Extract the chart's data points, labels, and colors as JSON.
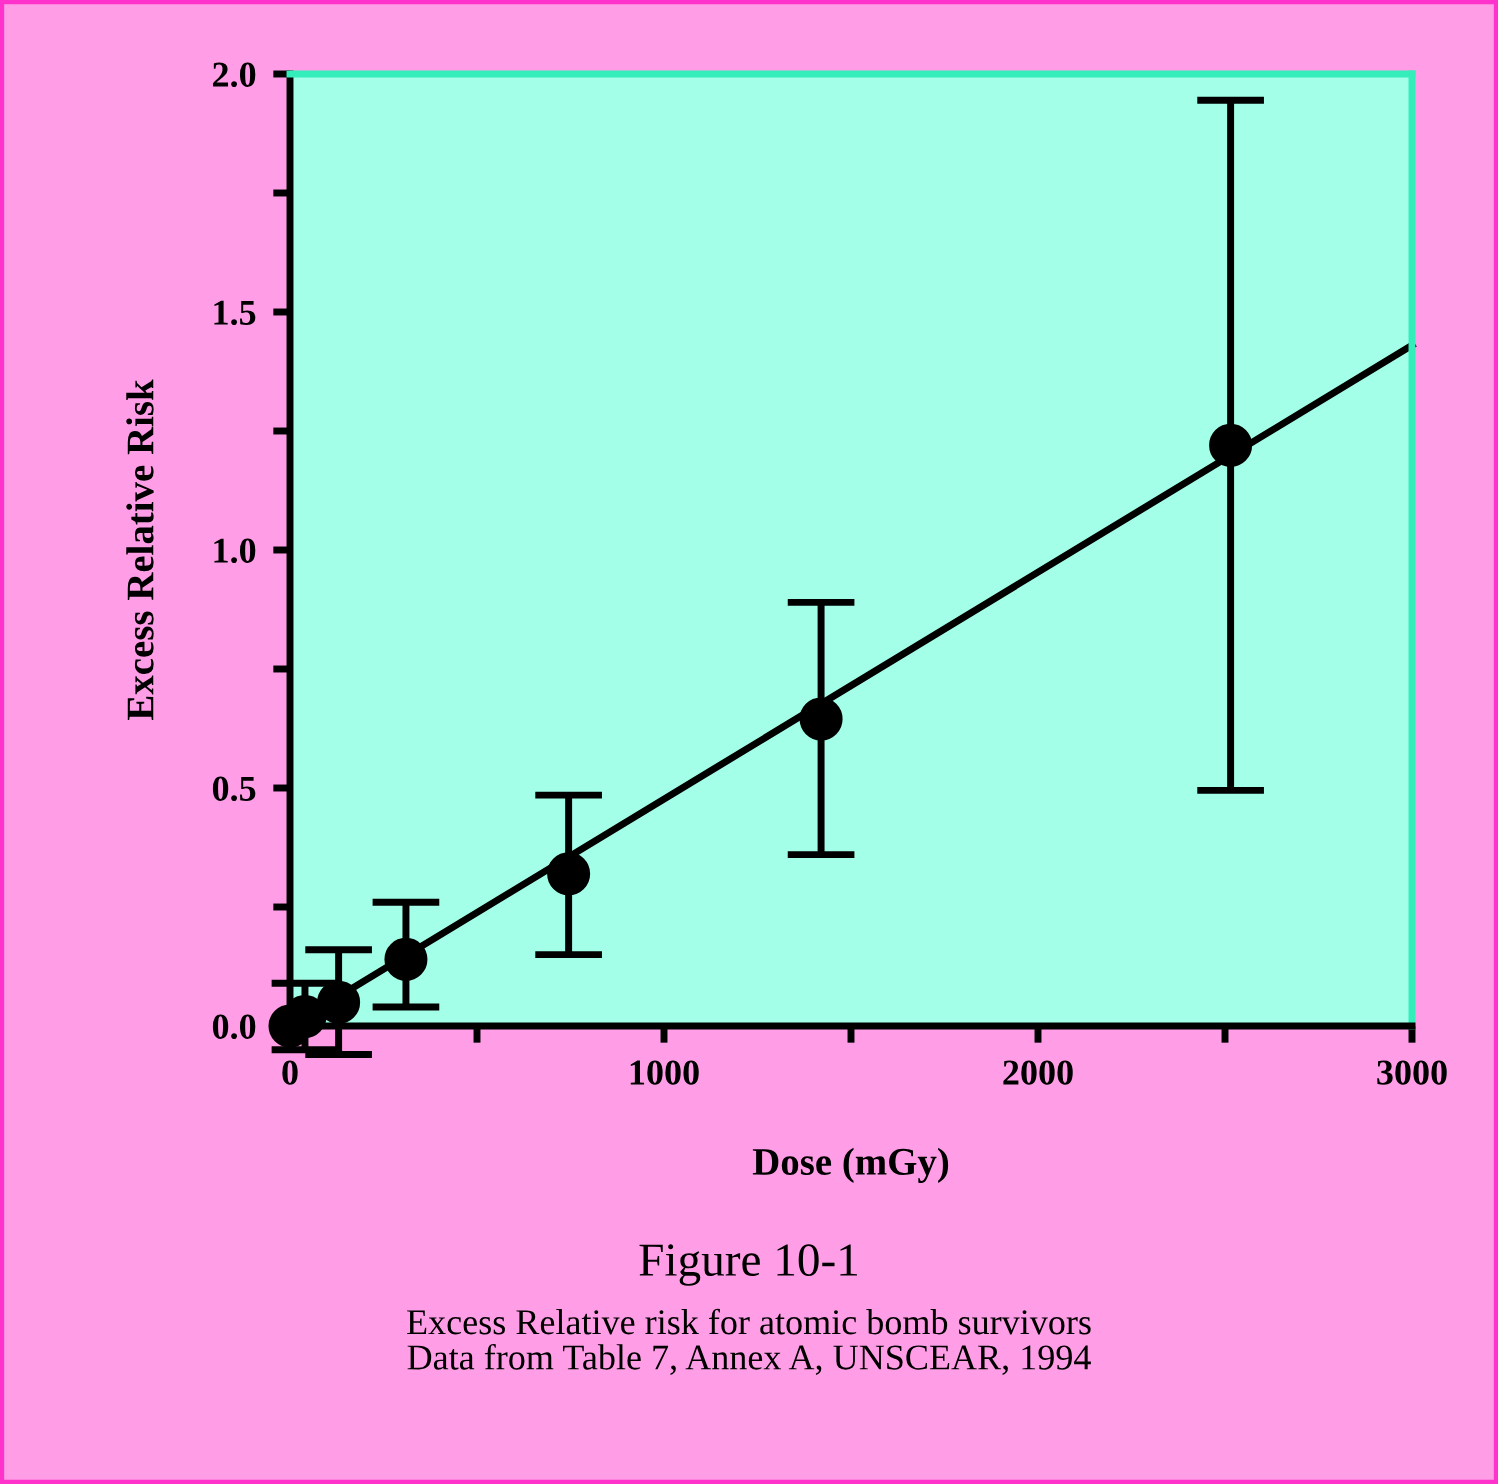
{
  "chart_data": {
    "type": "scatter",
    "xlabel": "Dose (mGy)",
    "ylabel": "Excess Relative Risk",
    "annotations": [
      "Figure 10-1",
      "Excess Relative risk for atomic bomb survivors\nData from Table 7, Annex A, UNSCEAR, 1994"
    ],
    "series": [
      {
        "color": "#000000",
        "marker": "circle",
        "x": [
          0,
          40,
          130,
          310,
          745,
          1420,
          2515
        ],
        "values": [
          0.0,
          0.02,
          0.05,
          0.14,
          0.32,
          0.645,
          1.22
        ],
        "errors": [
          null,
          [
            -0.05,
            0.09
          ],
          [
            -0.06,
            0.16
          ],
          [
            0.04,
            0.26
          ],
          [
            0.15,
            0.485
          ],
          [
            0.36,
            0.89
          ],
          [
            0.495,
            1.945
          ]
        ]
      },
      {
        "type": "line",
        "color": "#000000",
        "x": [
          0,
          3000
        ],
        "values": [
          0.0,
          1.43
        ]
      }
    ],
    "xlim": [
      0,
      3000
    ],
    "ylim": [
      0,
      2.0
    ],
    "xticks": [
      0,
      {
        "value": 500,
        "label": null
      },
      1000,
      {
        "value": 1500,
        "label": null
      },
      2000,
      {
        "value": 2500,
        "label": null
      },
      3000
    ],
    "yticks": [
      {
        "value": 0,
        "label": "0.0"
      },
      {
        "value": 0.25,
        "label": null
      },
      {
        "value": 0.5,
        "label": "0.5"
      },
      {
        "value": 0.75,
        "label": null
      },
      {
        "value": 1.0,
        "label": "1.0"
      },
      {
        "value": 1.25,
        "label": null
      },
      {
        "value": 1.5,
        "label": "1.5"
      },
      {
        "value": 1.75,
        "label": null
      },
      {
        "value": 2.0,
        "label": "2.0"
      }
    ],
    "grid": false,
    "legend": false
  }
}
